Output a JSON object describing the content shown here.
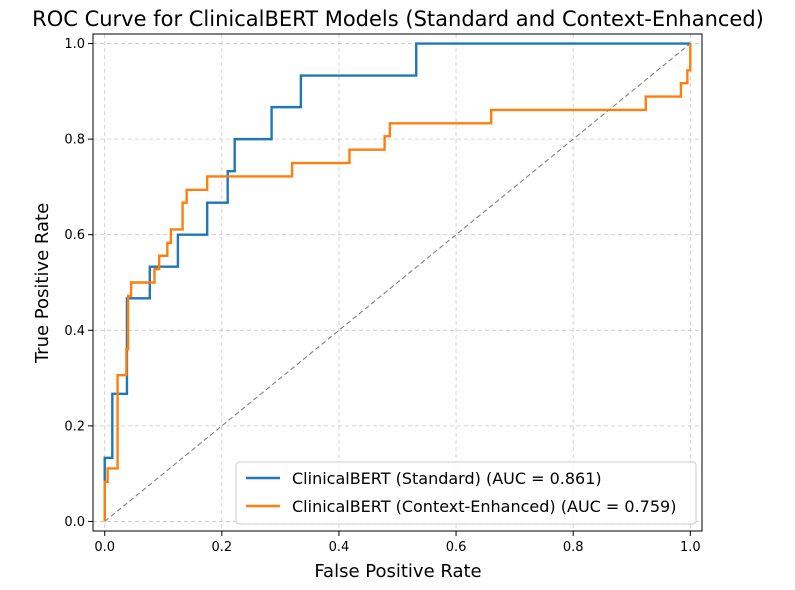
{
  "chart_data": {
    "type": "line",
    "title": "ROC Curve for ClinicalBERT Models (Standard and Context-Enhanced)",
    "xlabel": "False Positive Rate",
    "ylabel": "True Positive Rate",
    "xlim": [
      -0.02,
      1.02
    ],
    "ylim": [
      -0.02,
      1.02
    ],
    "xticks": [
      0.0,
      0.2,
      0.4,
      0.6,
      0.8,
      1.0
    ],
    "yticks": [
      0.0,
      0.2,
      0.4,
      0.6,
      0.8,
      1.0
    ],
    "xtick_labels": [
      "0.0",
      "0.2",
      "0.4",
      "0.6",
      "0.8",
      "1.0"
    ],
    "ytick_labels": [
      "0.0",
      "0.2",
      "0.4",
      "0.6",
      "0.8",
      "1.0"
    ],
    "grid": true,
    "legend_position": "lower-right",
    "series": [
      {
        "name": "ClinicalBERT (Standard) (AUC = 0.861)",
        "color": "#1f77b4",
        "x": [
          0.0,
          0.0,
          0.0,
          0.0,
          0.013,
          0.013,
          0.038,
          0.038,
          0.038,
          0.038,
          0.077,
          0.077,
          0.125,
          0.125,
          0.175,
          0.175,
          0.21,
          0.21,
          0.222,
          0.222,
          0.285,
          0.285,
          0.335,
          0.335,
          0.532,
          0.532,
          1.0
        ],
        "y": [
          0.0,
          0.09,
          0.09,
          0.133,
          0.133,
          0.267,
          0.267,
          0.367,
          0.367,
          0.467,
          0.467,
          0.533,
          0.533,
          0.6,
          0.6,
          0.667,
          0.667,
          0.733,
          0.733,
          0.8,
          0.8,
          0.867,
          0.867,
          0.933,
          0.933,
          1.0,
          1.0
        ]
      },
      {
        "name": "ClinicalBERT (Context-Enhanced) (AUC = 0.759)",
        "color": "#ff7f0e",
        "x": [
          0.0,
          0.0,
          0.005,
          0.005,
          0.022,
          0.022,
          0.037,
          0.037,
          0.04,
          0.04,
          0.045,
          0.045,
          0.085,
          0.085,
          0.093,
          0.093,
          0.107,
          0.107,
          0.113,
          0.113,
          0.133,
          0.133,
          0.14,
          0.14,
          0.175,
          0.175,
          0.32,
          0.32,
          0.418,
          0.418,
          0.478,
          0.478,
          0.487,
          0.487,
          0.66,
          0.66,
          0.924,
          0.924,
          0.984,
          0.984,
          0.995,
          0.995,
          1.0,
          1.0
        ],
        "y": [
          0.0,
          0.083,
          0.083,
          0.111,
          0.111,
          0.306,
          0.306,
          0.361,
          0.361,
          0.472,
          0.472,
          0.5,
          0.5,
          0.528,
          0.528,
          0.556,
          0.556,
          0.583,
          0.583,
          0.611,
          0.611,
          0.667,
          0.667,
          0.694,
          0.694,
          0.722,
          0.722,
          0.75,
          0.75,
          0.778,
          0.778,
          0.806,
          0.806,
          0.833,
          0.833,
          0.861,
          0.861,
          0.889,
          0.889,
          0.917,
          0.917,
          0.944,
          0.944,
          1.0
        ]
      }
    ],
    "reference_line": {
      "x": [
        0.0,
        1.0
      ],
      "y": [
        0.0,
        1.0
      ],
      "color": "#808080",
      "style": "dashed"
    }
  }
}
